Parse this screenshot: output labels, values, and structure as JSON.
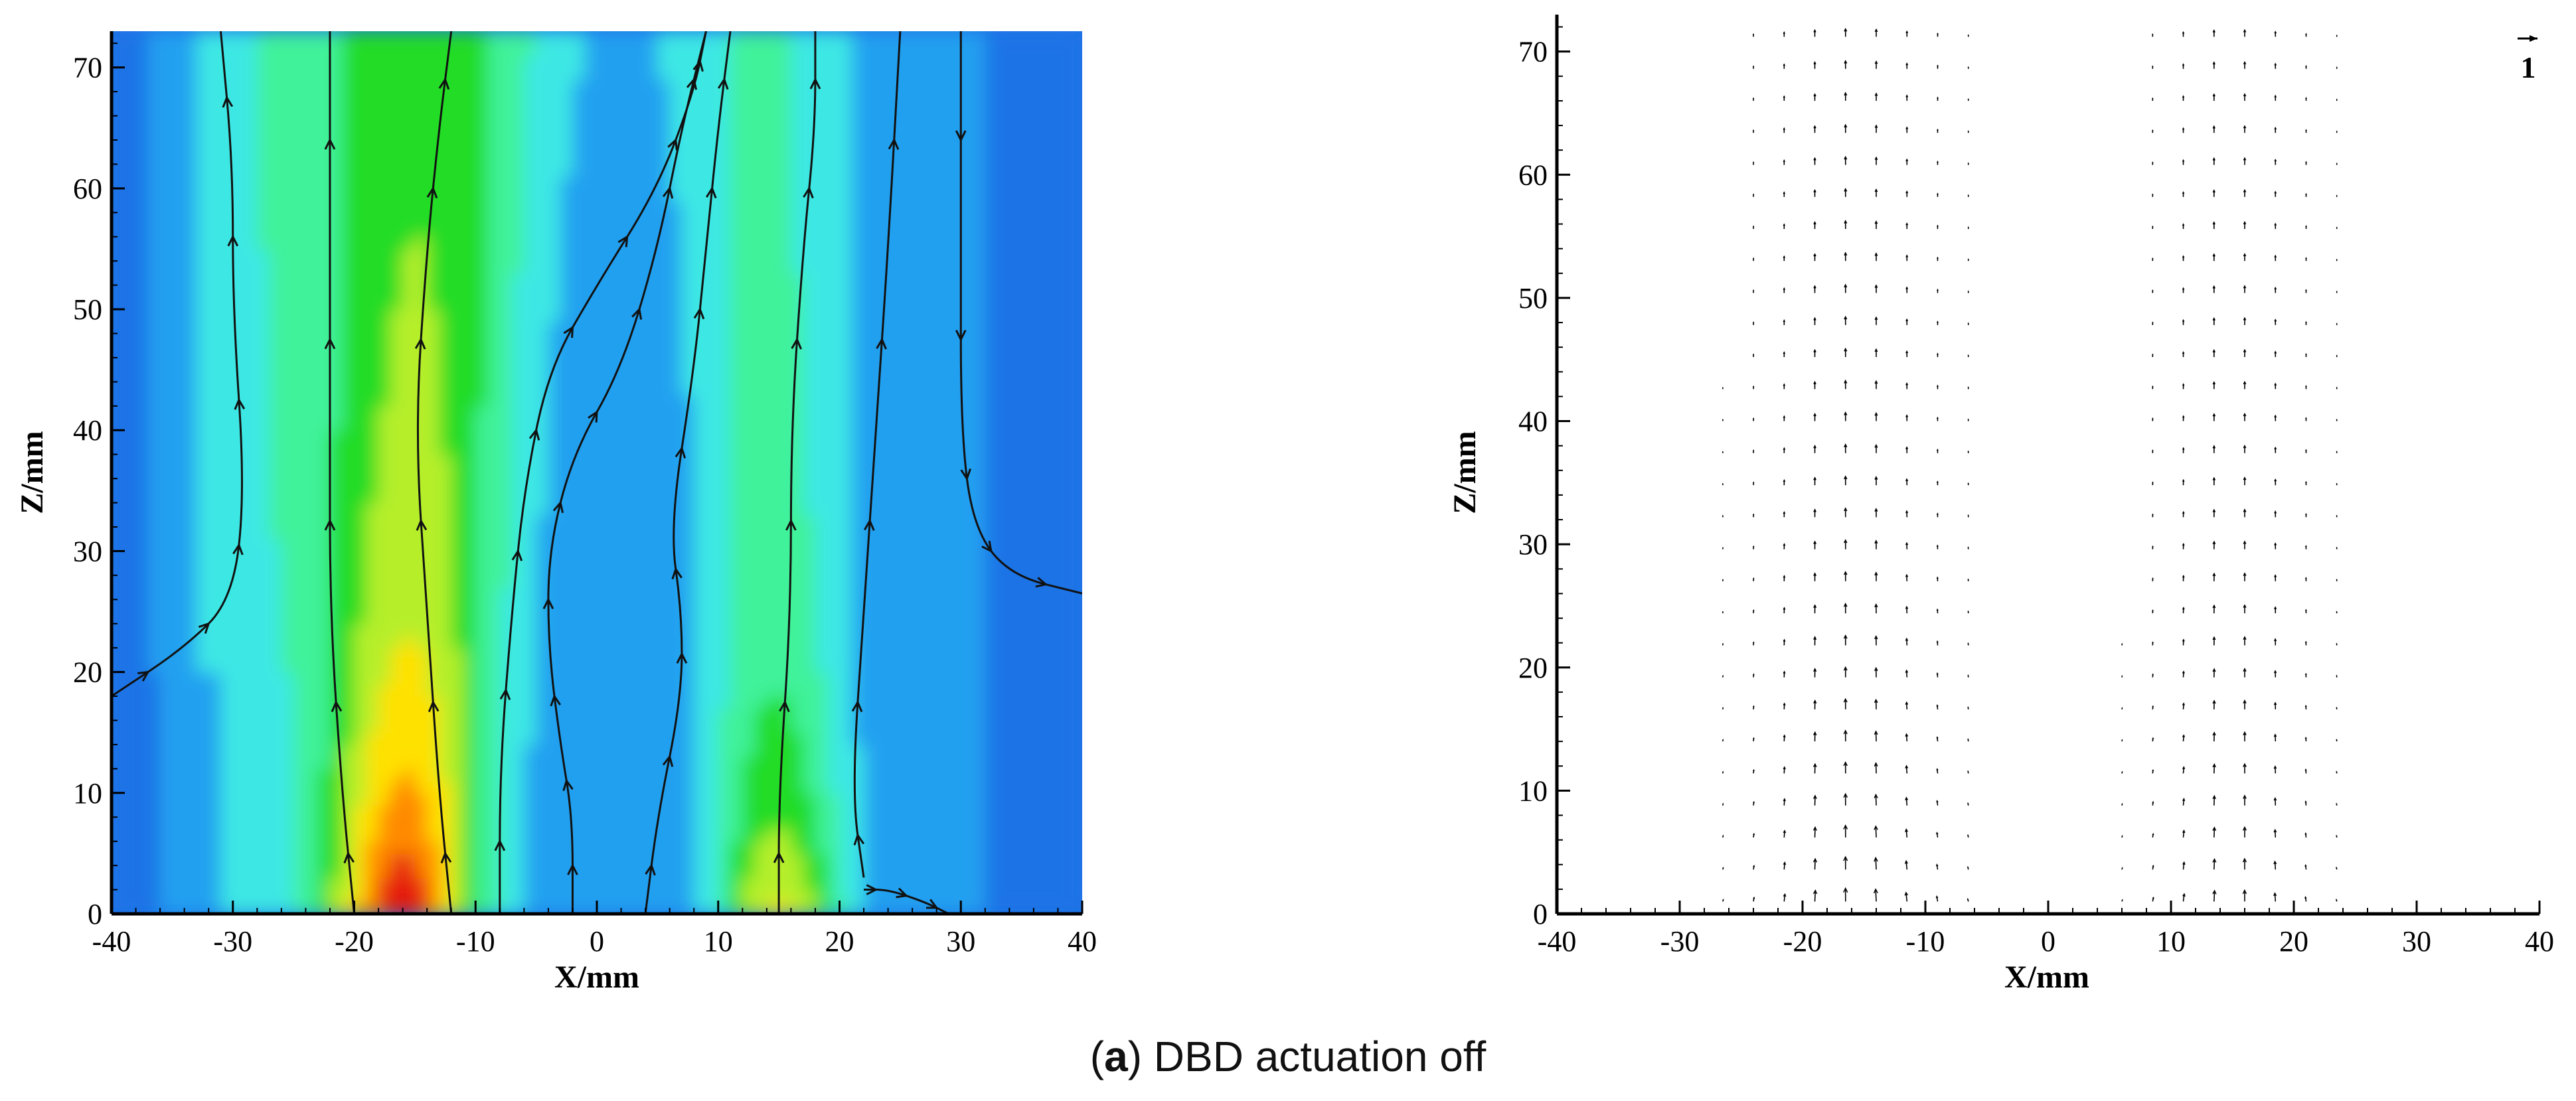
{
  "caption": {
    "prefix": "(",
    "letter": "a",
    "suffix": ") DBD actuation off"
  },
  "chart_data": [
    {
      "type": "heatmap",
      "subtype": "velocity-contour-with-streamlines",
      "xlabel": "X/mm",
      "ylabel": "Z/mm",
      "xlim": [
        -40,
        40
      ],
      "ylim": [
        0,
        73
      ],
      "xticks": [
        -40,
        -30,
        -20,
        -10,
        0,
        10,
        20,
        30,
        40
      ],
      "yticks": [
        0,
        10,
        20,
        30,
        40,
        50,
        60,
        70
      ],
      "colormap": [
        "#1f73e6",
        "#22a0f0",
        "#3ee8e4",
        "#3ff29a",
        "#22dc26",
        "#b6ef2b",
        "#ffe100",
        "#ff8a00",
        "#e51b0a"
      ],
      "high_regions": [
        {
          "x_center": -16,
          "z_peak": 0,
          "peak_value": 1.0
        },
        {
          "x_center": 15,
          "z_peak": 0,
          "peak_value": 0.85
        }
      ],
      "streamlines": [
        [
          [
            -40,
            18
          ],
          [
            -34,
            22
          ],
          [
            -30,
            26
          ],
          [
            -29,
            35
          ],
          [
            -30,
            50
          ],
          [
            -30,
            62
          ],
          [
            -31,
            73
          ]
        ],
        [
          [
            -20,
            0
          ],
          [
            -21,
            10
          ],
          [
            -22,
            25
          ],
          [
            -22,
            40
          ],
          [
            -22,
            55
          ],
          [
            -22,
            73
          ]
        ],
        [
          [
            -12,
            0
          ],
          [
            -13,
            10
          ],
          [
            -14,
            25
          ],
          [
            -15,
            40
          ],
          [
            -14,
            55
          ],
          [
            -13,
            65
          ],
          [
            -12,
            73
          ]
        ],
        [
          [
            -8,
            0
          ],
          [
            -8,
            12
          ],
          [
            -7,
            25
          ],
          [
            -6,
            35
          ],
          [
            -4,
            45
          ],
          [
            0,
            52
          ],
          [
            5,
            60
          ],
          [
            8,
            68
          ],
          [
            9,
            73
          ]
        ],
        [
          [
            -2,
            0
          ],
          [
            -2,
            8
          ],
          [
            -3,
            14
          ],
          [
            -4,
            22
          ],
          [
            -4,
            30
          ],
          [
            -2,
            38
          ],
          [
            2,
            45
          ],
          [
            5,
            55
          ],
          [
            7,
            65
          ],
          [
            9,
            73
          ]
        ],
        [
          [
            4,
            0
          ],
          [
            5,
            8
          ],
          [
            7,
            18
          ],
          [
            7,
            25
          ],
          [
            6,
            32
          ],
          [
            8,
            45
          ],
          [
            9,
            55
          ],
          [
            10,
            65
          ],
          [
            11,
            73
          ]
        ],
        [
          [
            15,
            0
          ],
          [
            15,
            10
          ],
          [
            16,
            25
          ],
          [
            16,
            40
          ],
          [
            17,
            55
          ],
          [
            18,
            65
          ],
          [
            18,
            73
          ]
        ],
        [
          [
            22,
            2
          ],
          [
            24,
            2
          ],
          [
            27,
            1
          ],
          [
            29,
            0
          ]
        ],
        [
          [
            22,
            3
          ],
          [
            21,
            10
          ],
          [
            22,
            25
          ],
          [
            23,
            40
          ],
          [
            24,
            55
          ],
          [
            25,
            73
          ]
        ],
        [
          [
            30,
            73
          ],
          [
            30,
            55
          ],
          [
            30,
            40
          ],
          [
            31,
            32
          ],
          [
            34,
            28
          ],
          [
            40,
            26.5
          ]
        ]
      ]
    },
    {
      "type": "vector-field",
      "xlabel": "X/mm",
      "ylabel": "Z/mm",
      "xlim": [
        -40,
        40
      ],
      "ylim": [
        0,
        73
      ],
      "xticks": [
        -40,
        -30,
        -20,
        -10,
        0,
        10,
        20,
        30,
        40
      ],
      "yticks": [
        0,
        10,
        20,
        30,
        40,
        50,
        60,
        70
      ],
      "reference_vector_label": "1",
      "jets": [
        {
          "x_center": -16,
          "half_width": 7,
          "peak_speed": 2.2
        },
        {
          "x_center": 15,
          "half_width": 6,
          "peak_speed": 1.9
        }
      ]
    }
  ]
}
